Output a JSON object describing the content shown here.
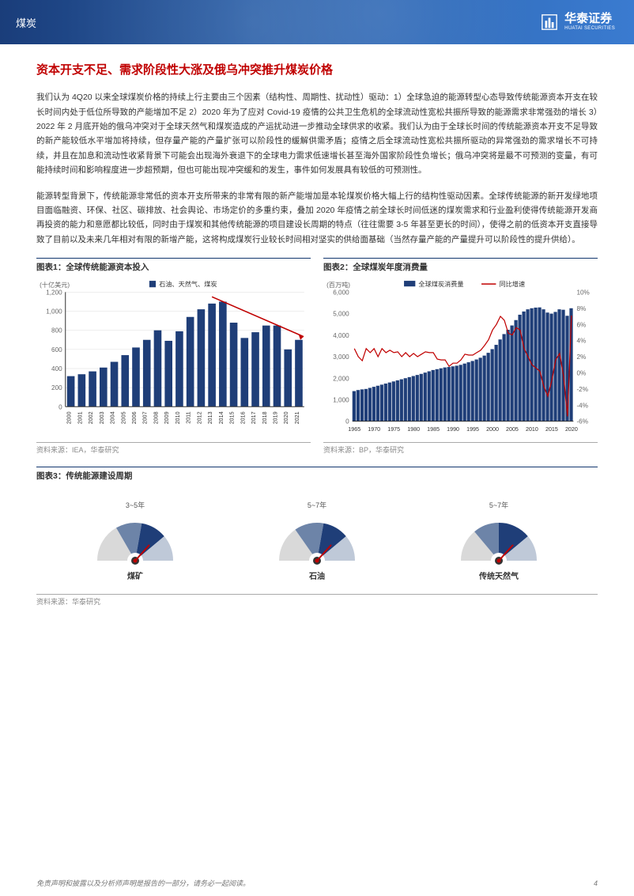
{
  "header": {
    "category": "煤炭",
    "brand_cn": "华泰证券",
    "brand_en": "HUATAI SECURITIES"
  },
  "section_title": "资本开支不足、需求阶段性大涨及俄乌冲突推升煤炭价格",
  "para1": "我们认为 4Q20 以来全球煤炭价格的持续上行主要由三个因素（结构性、周期性、扰动性）驱动：1）全球急迫的能源转型心态导致传统能源资本开支在较长时间内处于低位所导致的产能增加不足 2）2020 年为了应对 Covid-19 疫情的公共卫生危机的全球流动性宽松共振所导致的能源需求非常强劲的增长 3）2022 年 2 月底开始的俄乌冲突对于全球天然气和煤炭造成的产运扰动进一步推动全球供求的收紧。我们认为由于全球长时间的传统能源资本开支不足导致的新产能较低水平增加将持续，但存量产能的产量扩张可以阶段性的缓解供需矛盾；疫情之后全球流动性宽松共振所驱动的异常强劲的需求增长不可持续，并且在加息和流动性收紧背景下可能会出现海外衰退下的全球电力需求低速增长甚至海外国家阶段性负增长；俄乌冲突将是最不可预测的变量，有可能持续时间和影响程度进一步超预期，但也可能出现冲突缓和的发生，事件如何发展具有较低的可预测性。",
  "para2": "能源转型背景下，传统能源非常低的资本开支所带来的非常有限的新产能增加是本轮煤炭价格大幅上行的结构性驱动因素。全球传统能源的新开发绿地项目面临融资、环保、社区、碳排放、社会舆论、市场定价的多重约束，叠加 2020 年疫情之前全球长时间低迷的煤炭需求和行业盈利使得传统能源开发商再投资的能力和意愿都比较低，同时由于煤炭和其他传统能源的项目建设长周期的特点（往往需要 3-5 年甚至更长的时间），使得之前的低资本开支直接导致了目前以及未来几年相对有限的新增产能，这将构成煤炭行业较长时间相对坚实的供给面基础（当然存量产能的产量提升可以阶段性的提升供给）。",
  "chart1": {
    "title": "图表1：全球传统能源资本投入",
    "y_label": "(十亿美元)",
    "legend": "石油、天然气、煤炭",
    "source": "资料来源：IEA，华泰研究",
    "years": [
      "2000",
      "2001",
      "2002",
      "2003",
      "2004",
      "2005",
      "2006",
      "2007",
      "2008",
      "2009",
      "2010",
      "2011",
      "2012",
      "2013",
      "2014",
      "2015",
      "2016",
      "2017",
      "2018",
      "2019",
      "2020",
      "2021"
    ],
    "values": [
      320,
      340,
      370,
      410,
      470,
      540,
      620,
      700,
      800,
      690,
      790,
      940,
      1020,
      1080,
      1100,
      880,
      720,
      780,
      850,
      850,
      600,
      700
    ],
    "y_ticks": [
      0,
      200,
      400,
      600,
      800,
      1000,
      1200
    ],
    "bar_color": "#1f3e78",
    "arrow_color": "#c00000",
    "axis_color": "#333",
    "grid_color": "#ddd"
  },
  "chart2": {
    "title": "图表2：全球煤炭年度消费量",
    "y_label_left": "(百万吨)",
    "legend_bar": "全球煤炭消费量",
    "legend_line": "同比增速",
    "source": "资料来源：BP，华泰研究",
    "x_ticks": [
      "1965",
      "1970",
      "1975",
      "1980",
      "1985",
      "1990",
      "1995",
      "2000",
      "2005",
      "2010",
      "2015",
      "2020"
    ],
    "y_left_ticks": [
      0,
      1000,
      2000,
      3000,
      4000,
      5000,
      6000
    ],
    "y_right_ticks": [
      "-6%",
      "-4%",
      "-2%",
      "0%",
      "2%",
      "4%",
      "6%",
      "8%",
      "10%"
    ],
    "bars": [
      1400,
      1450,
      1480,
      1500,
      1550,
      1600,
      1650,
      1700,
      1750,
      1800,
      1850,
      1900,
      1950,
      2000,
      2050,
      2100,
      2150,
      2200,
      2260,
      2320,
      2380,
      2420,
      2460,
      2500,
      2520,
      2550,
      2580,
      2620,
      2680,
      2740,
      2800,
      2870,
      2950,
      3050,
      3180,
      3350,
      3550,
      3800,
      4050,
      4250,
      4450,
      4700,
      4950,
      5100,
      5200,
      5250,
      5280,
      5290,
      5200,
      5050,
      5000,
      5080,
      5200,
      5180,
      4900,
      5250
    ],
    "line": [
      3,
      2,
      1.5,
      3,
      2.5,
      3,
      2,
      3,
      2.5,
      2.8,
      2.5,
      2.6,
      2,
      2.5,
      2,
      2.4,
      2,
      2.3,
      2.6,
      2.5,
      2.5,
      1.7,
      1.6,
      1.6,
      0.8,
      1.2,
      1.2,
      1.6,
      2.3,
      2.2,
      2.2,
      2.5,
      2.8,
      3.4,
      4.1,
      5.3,
      6,
      7,
      6.5,
      4.9,
      4.7,
      5.6,
      5.3,
      3,
      2,
      1,
      0.6,
      0.2,
      -1.7,
      -2.9,
      -1,
      1.6,
      2.4,
      -0.4,
      -5.4,
      7.1
    ],
    "bar_color": "#1f3e78",
    "line_color": "#c00000"
  },
  "chart3": {
    "title": "图表3：传统能源建设周期",
    "source": "资料来源：华泰研究",
    "items": [
      {
        "top": "3~5年",
        "bottom": "煤矿",
        "slices": [
          {
            "c": "#d9d9d9",
            "a": 60
          },
          {
            "c": "#6d84a8",
            "a": 40
          },
          {
            "c": "#1f3e78",
            "a": 40
          },
          {
            "c": "#bfc9d8",
            "a": 40
          }
        ]
      },
      {
        "top": "5~7年",
        "bottom": "石油",
        "slices": [
          {
            "c": "#d9d9d9",
            "a": 55
          },
          {
            "c": "#6d84a8",
            "a": 45
          },
          {
            "c": "#1f3e78",
            "a": 40
          },
          {
            "c": "#bfc9d8",
            "a": 40
          }
        ]
      },
      {
        "top": "5~7年",
        "bottom": "传统天然气",
        "slices": [
          {
            "c": "#d9d9d9",
            "a": 50
          },
          {
            "c": "#6d84a8",
            "a": 40
          },
          {
            "c": "#1f3e78",
            "a": 50
          },
          {
            "c": "#bfc9d8",
            "a": 40
          }
        ]
      }
    ]
  },
  "footer": {
    "disclaimer": "免责声明和披露以及分析师声明是报告的一部分，请务必一起阅读。",
    "page": "4"
  }
}
